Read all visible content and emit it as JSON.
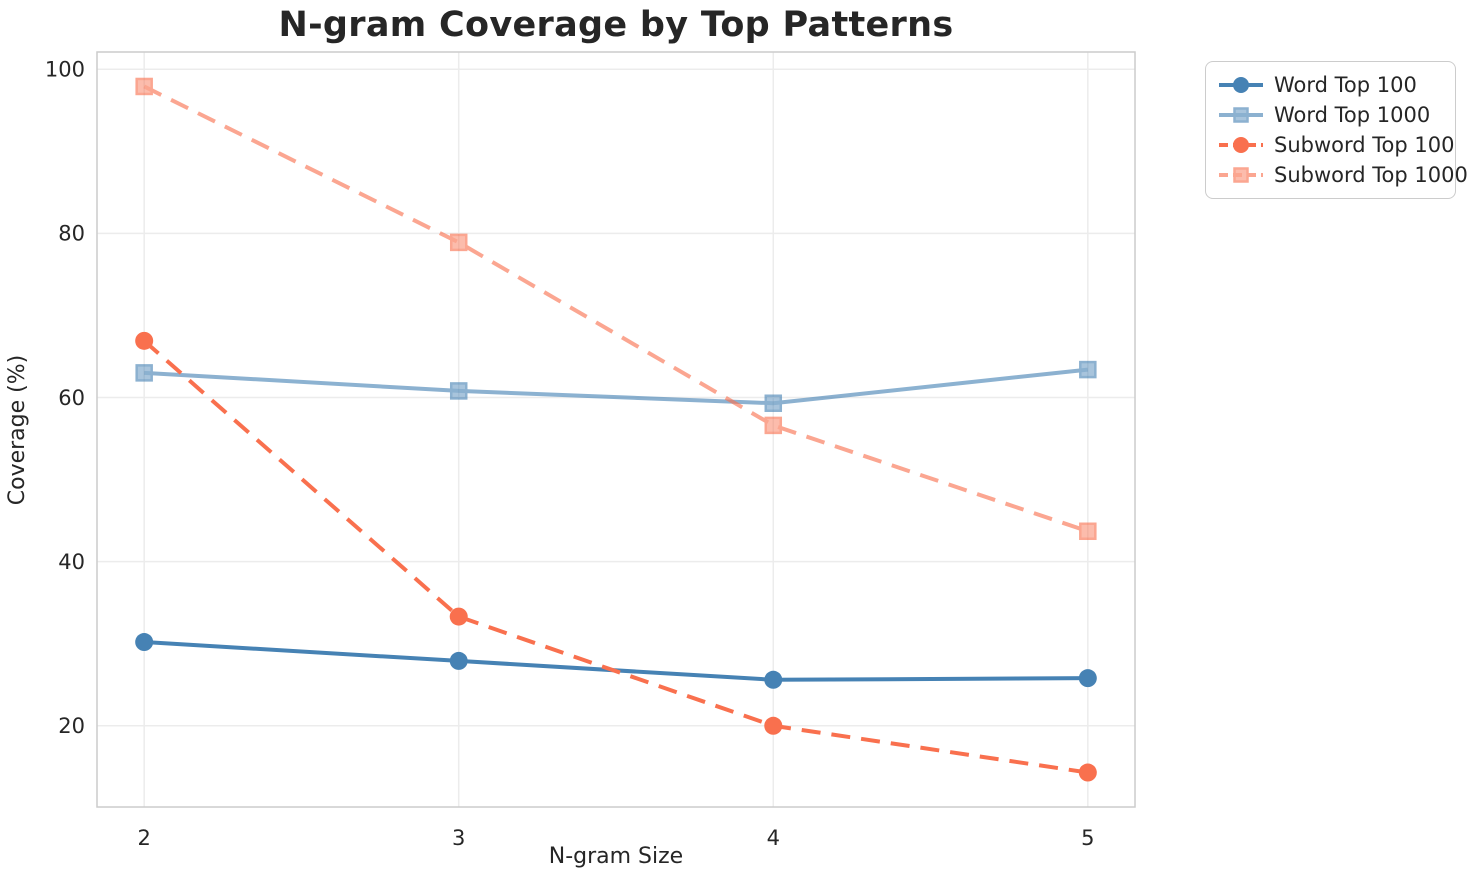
{
  "chart_data": {
    "type": "line",
    "title": "N-gram Coverage by Top Patterns",
    "xlabel": "N-gram Size",
    "ylabel": "Coverage (%)",
    "x": [
      2,
      3,
      4,
      5
    ],
    "xtick_labels": [
      "2",
      "3",
      "4",
      "5"
    ],
    "ytick_labels": [
      "20",
      "40",
      "60",
      "80",
      "100"
    ],
    "yticks": [
      20,
      40,
      60,
      80,
      100
    ],
    "xlim": [
      1.85,
      5.15
    ],
    "ylim": [
      10.1,
      102.1
    ],
    "grid": true,
    "legend_position": "outside-top-right",
    "series": [
      {
        "name": "Word Top 100",
        "values": [
          30.2,
          27.9,
          25.6,
          25.8
        ],
        "color": "#4682B4",
        "alpha": 1.0,
        "marker": "circle",
        "line_style": "solid"
      },
      {
        "name": "Word Top 1000",
        "values": [
          63.0,
          60.8,
          59.3,
          63.4
        ],
        "color": "#4682B4",
        "alpha": 0.62,
        "marker": "square",
        "line_style": "solid"
      },
      {
        "name": "Subword Top 100",
        "values": [
          66.9,
          33.3,
          20.0,
          14.3
        ],
        "color": "#F9704E",
        "alpha": 1.0,
        "marker": "circle",
        "line_style": "dashed"
      },
      {
        "name": "Subword Top 1000",
        "values": [
          97.9,
          78.9,
          56.6,
          43.7
        ],
        "color": "#F9704E",
        "alpha": 0.62,
        "marker": "square",
        "line_style": "dashed"
      }
    ],
    "style": {
      "text_color": "#262626",
      "grid_color": "#ececec",
      "spine_color": "#cccccc",
      "background": "#ffffff"
    }
  }
}
